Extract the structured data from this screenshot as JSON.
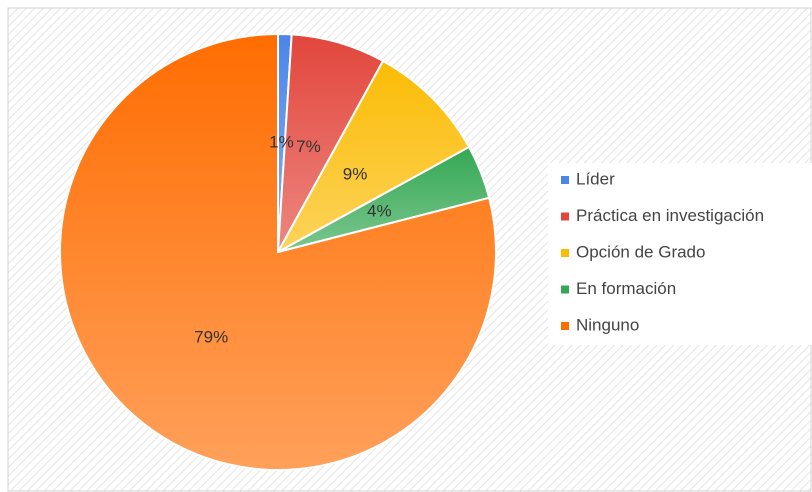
{
  "chart_data": {
    "type": "pie",
    "categories": [
      "Líder",
      "Práctica en investigación",
      "Opción de Grado",
      "En formación",
      "Ninguno"
    ],
    "values": [
      1,
      7,
      9,
      4,
      79
    ],
    "value_labels": [
      "1%",
      "7%",
      "9%",
      "4%",
      "79%"
    ],
    "colors": [
      "#4a86e8",
      "#e2463c",
      "#fbbc04",
      "#34a853",
      "#ff6d01"
    ],
    "legend": "right"
  }
}
